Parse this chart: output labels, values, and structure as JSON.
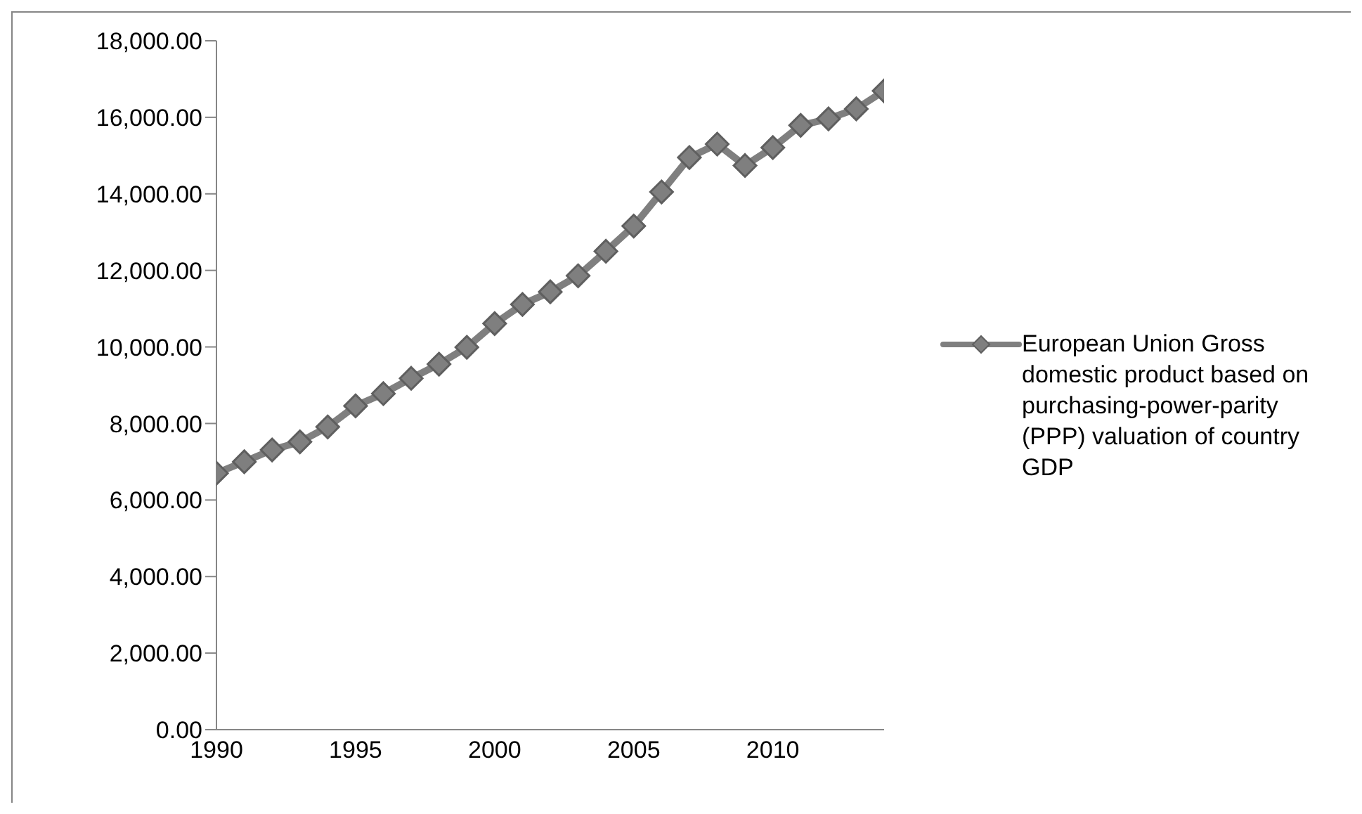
{
  "chart_data": {
    "type": "line",
    "x": [
      1990,
      1991,
      1992,
      1993,
      1994,
      1995,
      1996,
      1997,
      1998,
      1999,
      2000,
      2001,
      2002,
      2003,
      2004,
      2005,
      2006,
      2007,
      2008,
      2009,
      2010,
      2011,
      2012,
      2013,
      2014
    ],
    "series": [
      {
        "name": "European Union Gross domestic product based on purchasing-power-parity (PPP) valuation of country GDP",
        "color": "#7f7f7f",
        "values": [
          6700,
          7000,
          7310,
          7520,
          7910,
          8460,
          8780,
          9180,
          9550,
          9990,
          10610,
          11110,
          11440,
          11860,
          12500,
          13160,
          14050,
          14950,
          15300,
          14740,
          15210,
          15790,
          15960,
          16220,
          16690
        ]
      }
    ],
    "xlim": [
      1990,
      2014
    ],
    "xticks": [
      1990,
      1995,
      2000,
      2005,
      2010
    ],
    "ylim": [
      0,
      18000
    ],
    "yticks": [
      {
        "value": 0,
        "label": "0.00"
      },
      {
        "value": 2000,
        "label": "2,000.00"
      },
      {
        "value": 4000,
        "label": "4,000.00"
      },
      {
        "value": 6000,
        "label": "6,000.00"
      },
      {
        "value": 8000,
        "label": "8,000.00"
      },
      {
        "value": 10000,
        "label": "10,000.00"
      },
      {
        "value": 12000,
        "label": "12,000.00"
      },
      {
        "value": 14000,
        "label": "14,000.00"
      },
      {
        "value": 16000,
        "label": "16,000.00"
      },
      {
        "value": 18000,
        "label": "18,000.00"
      }
    ],
    "grid": false,
    "legend": "right",
    "marker": "diamond",
    "line_style": "solid"
  }
}
